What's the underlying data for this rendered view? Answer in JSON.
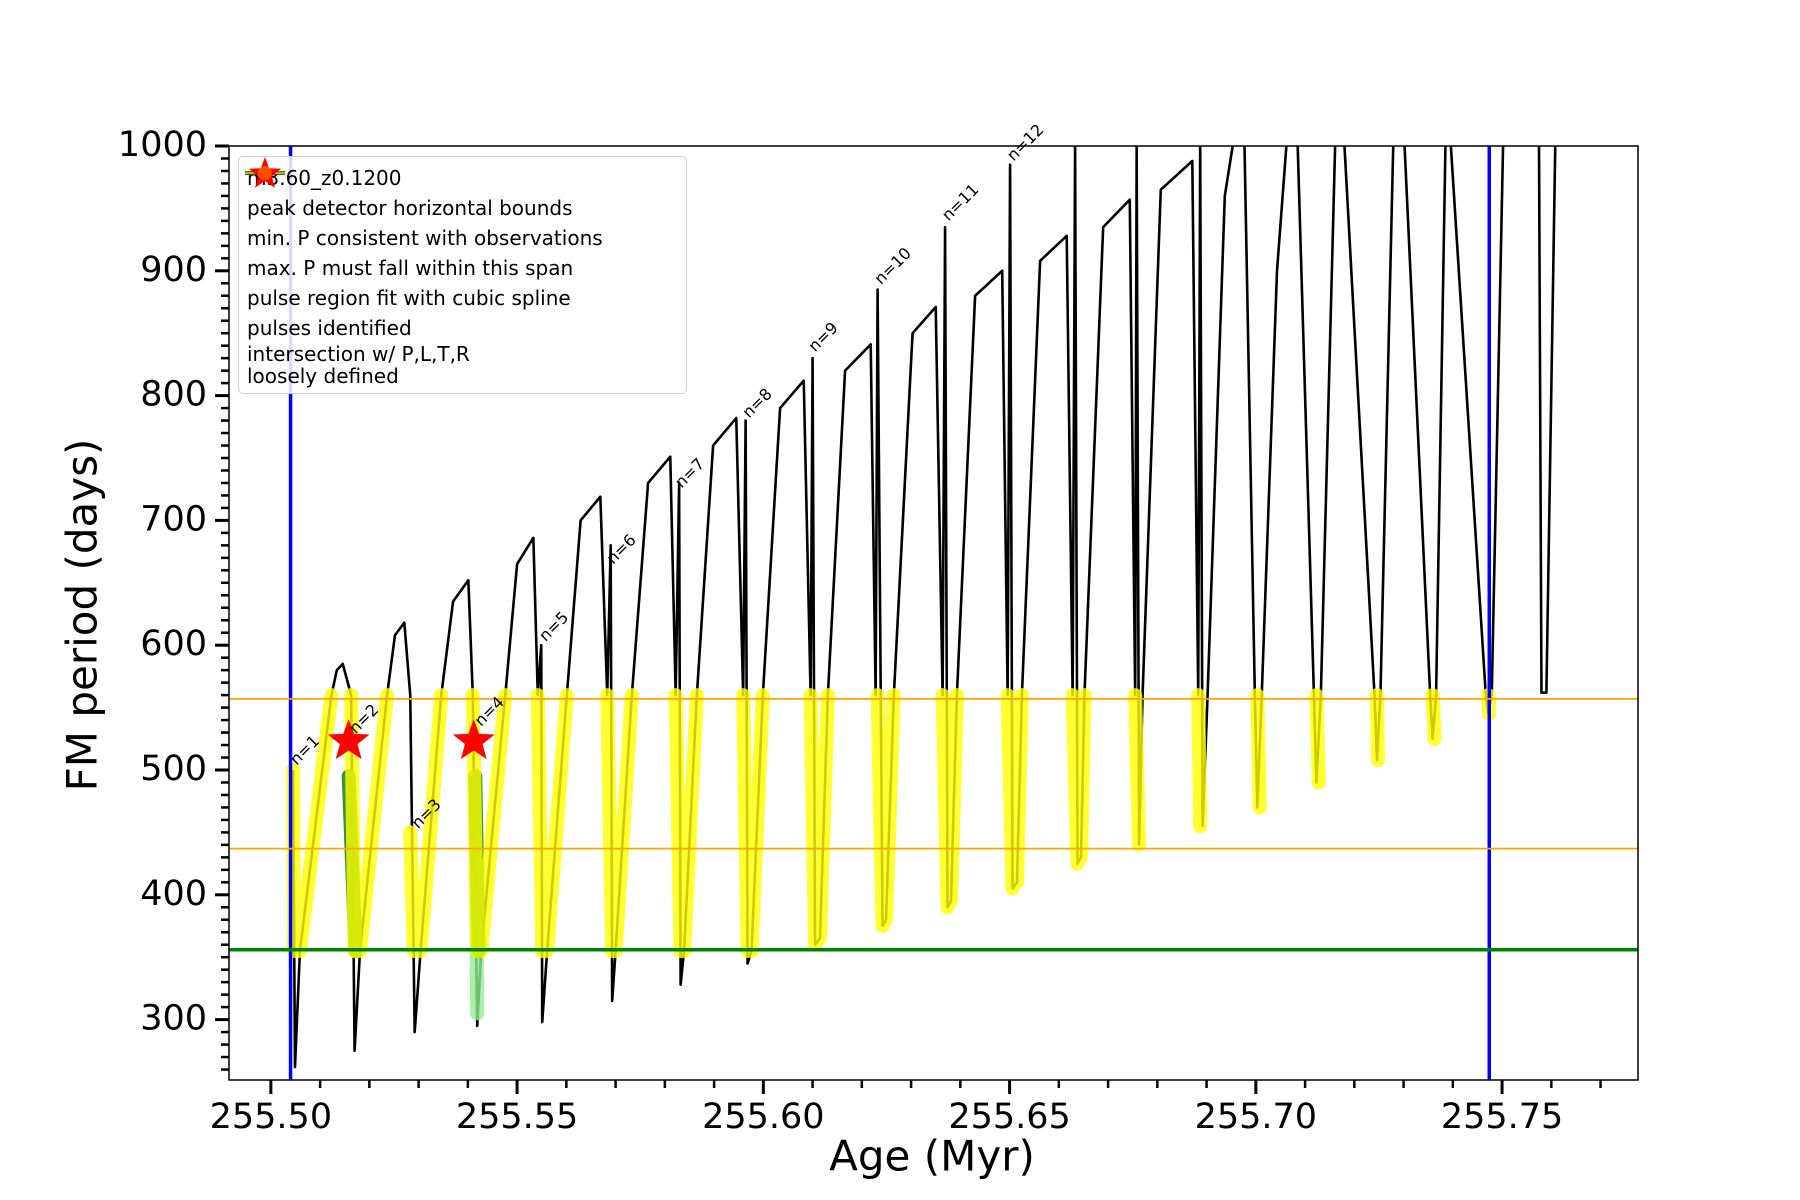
{
  "chart_data": {
    "type": "line",
    "x_label": "Age (Myr)",
    "y_label": "FM period (days)",
    "xlim": [
      255.4915,
      255.7776
    ],
    "ylim": [
      251.6,
      1000
    ],
    "xticks": [
      {
        "value": 255.5,
        "label": "255.50"
      },
      {
        "value": 255.55,
        "label": "255.55"
      },
      {
        "value": 255.6,
        "label": "255.60"
      },
      {
        "value": 255.65,
        "label": "255.65"
      },
      {
        "value": 255.7,
        "label": "255.70"
      },
      {
        "value": 255.75,
        "label": "255.75"
      }
    ],
    "xticks_minor": [
      255.51,
      255.52,
      255.53,
      255.54,
      255.56,
      255.57,
      255.58,
      255.59,
      255.61,
      255.62,
      255.63,
      255.64,
      255.66,
      255.67,
      255.68,
      255.69,
      255.71,
      255.72,
      255.73,
      255.74,
      255.76,
      255.77
    ],
    "yticks": [
      300,
      400,
      500,
      600,
      700,
      800,
      900,
      1000
    ],
    "yticks_minor": [
      260,
      270,
      280,
      290,
      310,
      320,
      330,
      340,
      350,
      360,
      370,
      380,
      390,
      410,
      420,
      430,
      440,
      450,
      460,
      470,
      480,
      490,
      510,
      520,
      530,
      540,
      550,
      560,
      570,
      580,
      590,
      610,
      620,
      630,
      640,
      650,
      660,
      670,
      680,
      690,
      710,
      720,
      730,
      740,
      750,
      760,
      770,
      780,
      790,
      810,
      820,
      830,
      840,
      850,
      860,
      870,
      880,
      890,
      910,
      920,
      930,
      940,
      950,
      960,
      970,
      980,
      990
    ],
    "series": [
      {
        "name": "m3.60_z0.1200",
        "color": "#000000",
        "style": "line",
        "x": [
          255.5045,
          255.5049,
          255.5059,
          255.5123,
          255.5134,
          255.5146,
          255.5163,
          255.517,
          255.5181,
          255.5236,
          255.5252,
          255.5271,
          255.5283,
          255.5292,
          255.5304,
          255.5346,
          255.537,
          255.5401,
          255.541,
          255.5419,
          255.5427,
          255.5476,
          255.55,
          255.5533,
          255.5542,
          255.5549,
          255.5551,
          255.5561,
          255.5601,
          255.5629,
          255.5669,
          255.5683,
          255.569,
          255.5693,
          255.57,
          255.5733,
          255.5766,
          255.5811,
          255.5822,
          255.5829,
          255.5832,
          255.5839,
          255.5865,
          255.5898,
          255.5945,
          255.5959,
          255.5964,
          255.5968,
          255.5976,
          255.5999,
          255.6034,
          255.6082,
          255.6096,
          255.61,
          255.6105,
          255.6115,
          255.6131,
          255.6166,
          255.6218,
          255.6228,
          255.6232,
          255.6242,
          255.6249,
          255.6265,
          255.6303,
          255.635,
          255.6364,
          255.6369,
          255.6374,
          255.6381,
          255.6393,
          255.643,
          255.6485,
          255.6496,
          255.6501,
          255.6506,
          255.6515,
          255.6525,
          255.6562,
          255.6616,
          255.6628,
          255.6633,
          255.6638,
          255.6645,
          255.6652,
          255.669,
          255.6744,
          255.6755,
          255.6758,
          255.6763,
          255.677,
          255.6807,
          255.6871,
          255.6883,
          255.6887,
          255.6892,
          255.6902,
          255.6937,
          255.6953,
          null,
          255.6977,
          255.6998,
          255.7003,
          255.7012,
          255.7043,
          255.7062,
          null,
          255.7085,
          255.7118,
          255.7123,
          255.7132,
          255.7161,
          null,
          255.718,
          255.7241,
          255.7246,
          255.7253,
          255.7279,
          null,
          255.7302,
          255.7354,
          255.7359,
          255.7366,
          255.7385,
          null,
          255.7396,
          255.7467,
          255.7472,
          255.7479,
          255.7502,
          null,
          255.7575,
          255.758,
          255.759,
          255.7608
        ],
        "values": [
          500,
          262,
          355,
          560,
          580,
          585,
          560,
          275,
          355,
          560,
          608,
          618,
          560,
          290,
          355,
          560,
          635,
          652,
          560,
          295,
          355,
          560,
          665,
          686,
          560,
          600,
          298,
          355,
          560,
          700,
          719,
          560,
          680,
          315,
          355,
          560,
          730,
          751,
          560,
          730,
          328,
          355,
          560,
          760,
          782,
          560,
          780,
          345,
          355,
          560,
          790,
          812,
          560,
          830,
          360,
          365,
          560,
          820,
          841,
          560,
          885,
          375,
          380,
          560,
          850,
          871,
          560,
          935,
          390,
          395,
          560,
          880,
          900,
          560,
          985,
          405,
          410,
          560,
          908,
          928,
          560,
          1000,
          425,
          430,
          560,
          935,
          957,
          560,
          1000,
          440,
          560,
          965,
          988,
          560,
          1000,
          455,
          560,
          960,
          1000,
          null,
          1000,
          560,
          470,
          560,
          900,
          1000,
          null,
          1000,
          560,
          490,
          560,
          1000,
          null,
          1000,
          560,
          508,
          560,
          1000,
          null,
          1000,
          560,
          525,
          560,
          1000,
          null,
          1000,
          560,
          545,
          560,
          1000,
          null,
          1000,
          562,
          562,
          1000
        ]
      },
      {
        "name": "pulse region fit with cubic spline",
        "color": "#90ee90",
        "style": "band",
        "x": [
          255.5158,
          255.5172,
          null,
          255.5415,
          255.5419
        ],
        "values": [
          495,
          355,
          null,
          495,
          305
        ]
      },
      {
        "color": "#1f7a1f",
        "style": "band",
        "x": [
          255.5158,
          255.5172,
          null,
          255.5415,
          255.5422
        ],
        "values": [
          495,
          355,
          null,
          495,
          355
        ]
      },
      {
        "name": "pulses identified",
        "color": "#ff0000",
        "style": "star",
        "x": [
          255.5158,
          255.5412
        ],
        "values": [
          523,
          523
        ]
      },
      {
        "name": "intersection w/ P,L,T,R\nloosely defined",
        "color": "#ffff00",
        "style": "band",
        "x": [
          255.5045,
          255.5047,
          null,
          255.5059,
          255.5123,
          null,
          255.5163,
          255.517,
          null,
          255.5181,
          255.5236,
          null,
          255.5283,
          255.529,
          null,
          255.5304,
          255.5346,
          null,
          255.541,
          255.5419,
          null,
          255.5427,
          255.5476,
          null,
          255.5542,
          255.5551,
          null,
          255.5561,
          255.5601,
          null,
          255.5683,
          255.5693,
          null,
          255.57,
          255.5733,
          null,
          255.5822,
          255.5832,
          null,
          255.5839,
          255.5865,
          null,
          255.5959,
          255.5968,
          null,
          255.5976,
          255.5999,
          null,
          255.6096,
          255.6105,
          null,
          255.6115,
          255.6131,
          null,
          255.6232,
          255.6242,
          null,
          255.6249,
          255.6265,
          null,
          255.6364,
          255.6374,
          null,
          255.6381,
          255.6393,
          null,
          255.6496,
          255.6506,
          null,
          255.6515,
          255.6525,
          null,
          255.6628,
          255.6638,
          null,
          255.6645,
          255.6652,
          null,
          255.6755,
          255.6763,
          null,
          255.6883,
          255.6887,
          null,
          255.7003,
          255.7008,
          null,
          255.7123,
          255.7128,
          null,
          255.7246,
          255.7248,
          null,
          255.7359,
          255.7363,
          null,
          255.7472,
          255.7474
        ],
        "values": [
          500,
          355,
          null,
          355,
          560,
          null,
          560,
          355,
          null,
          355,
          560,
          null,
          450,
          355,
          null,
          355,
          560,
          null,
          560,
          355,
          null,
          355,
          560,
          null,
          560,
          355,
          null,
          355,
          560,
          null,
          560,
          355,
          null,
          355,
          560,
          null,
          560,
          355,
          null,
          355,
          560,
          null,
          560,
          355,
          null,
          355,
          560,
          null,
          560,
          360,
          null,
          365,
          560,
          null,
          560,
          375,
          null,
          380,
          560,
          null,
          560,
          390,
          null,
          395,
          560,
          null,
          560,
          405,
          null,
          410,
          560,
          null,
          560,
          425,
          null,
          430,
          560,
          null,
          560,
          440,
          null,
          560,
          455,
          null,
          560,
          470,
          null,
          560,
          490,
          null,
          560,
          508,
          null,
          560,
          525,
          null,
          560,
          545
        ]
      }
    ],
    "reference_lines": [
      {
        "name": "peak detector horizontal bounds",
        "color": "#0000ff",
        "orientation": "vertical",
        "values": [
          255.504,
          255.7474
        ]
      },
      {
        "name": "min. P consistent with observations",
        "color": "#008000",
        "orientation": "horizontal",
        "values": [
          356
        ]
      },
      {
        "name": "max. P must fall within this span",
        "color": "#ffa500",
        "orientation": "horizontal",
        "values": [
          437,
          557
        ]
      }
    ],
    "annotations": [
      {
        "text": "n=1",
        "x": 255.5052,
        "y": 500
      },
      {
        "text": "n=2",
        "x": 255.5172,
        "y": 525
      },
      {
        "text": "n=3",
        "x": 255.5299,
        "y": 449
      },
      {
        "text": "n=4",
        "x": 255.5427,
        "y": 531
      },
      {
        "text": "n=5",
        "x": 255.5558,
        "y": 599
      },
      {
        "text": "n=6",
        "x": 255.5695,
        "y": 661
      },
      {
        "text": "n=7",
        "x": 255.5834,
        "y": 722
      },
      {
        "text": "n=8",
        "x": 255.5971,
        "y": 778
      },
      {
        "text": "n=9",
        "x": 255.6105,
        "y": 831
      },
      {
        "text": "n=10",
        "x": 255.6239,
        "y": 885
      },
      {
        "text": "n=11",
        "x": 255.6376,
        "y": 936
      },
      {
        "text": "n=12",
        "x": 255.6508,
        "y": 984
      }
    ]
  }
}
